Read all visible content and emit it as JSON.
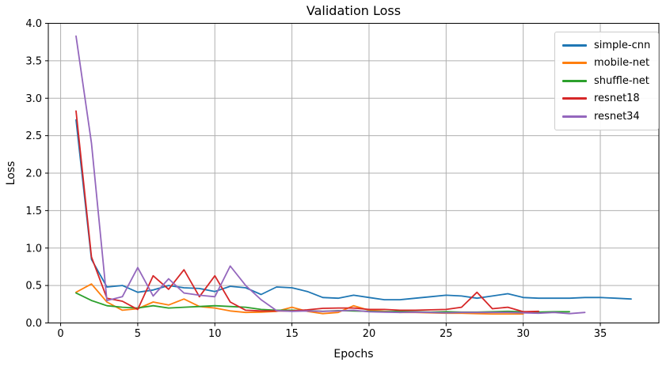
{
  "figure": {
    "background": "#ffffff",
    "grid_color": "#b0b0b0",
    "spine_color": "#000000",
    "tick_label_color": "#000000"
  },
  "chart_data": {
    "type": "line",
    "title": "Validation Loss",
    "xlabel": "Epochs",
    "ylabel": "Loss",
    "xlim": [
      -0.8,
      38.8
    ],
    "ylim": [
      0.0,
      4.0
    ],
    "xticks": [
      0,
      5,
      10,
      15,
      20,
      25,
      30,
      35
    ],
    "yticks": [
      0.0,
      0.5,
      1.0,
      1.5,
      2.0,
      2.5,
      3.0,
      3.5,
      4.0
    ],
    "grid": true,
    "legend_position": "upper-right",
    "x_start": 1,
    "series": [
      {
        "name": "simple-cnn",
        "color": "#1f77b4",
        "values": [
          2.71,
          0.85,
          0.48,
          0.5,
          0.41,
          0.44,
          0.5,
          0.47,
          0.46,
          0.42,
          0.49,
          0.47,
          0.38,
          0.48,
          0.47,
          0.42,
          0.34,
          0.33,
          0.37,
          0.34,
          0.31,
          0.31,
          0.33,
          0.35,
          0.37,
          0.36,
          0.33,
          0.36,
          0.39,
          0.34,
          0.33,
          0.33,
          0.33,
          0.34,
          0.34,
          0.33,
          0.32
        ]
      },
      {
        "name": "mobile-net",
        "color": "#ff7f0e",
        "values": [
          0.41,
          0.52,
          0.28,
          0.17,
          0.19,
          0.28,
          0.24,
          0.32,
          0.22,
          0.2,
          0.16,
          0.14,
          0.145,
          0.155,
          0.21,
          0.155,
          0.125,
          0.14,
          0.23,
          0.17,
          0.155,
          0.14,
          0.14,
          0.135,
          0.13,
          0.13,
          0.125,
          0.12,
          0.12,
          0.12
        ]
      },
      {
        "name": "shuffle-net",
        "color": "#2ca02c",
        "values": [
          0.4,
          0.3,
          0.23,
          0.21,
          0.2,
          0.23,
          0.2,
          0.21,
          0.22,
          0.23,
          0.22,
          0.21,
          0.18,
          0.17,
          0.17,
          0.165,
          0.155,
          0.165,
          0.16,
          0.155,
          0.15,
          0.155,
          0.15,
          0.145,
          0.15,
          0.145,
          0.145,
          0.15,
          0.155,
          0.15,
          0.145,
          0.15,
          0.15
        ]
      },
      {
        "name": "resnet18",
        "color": "#d62728",
        "values": [
          2.83,
          0.88,
          0.33,
          0.29,
          0.18,
          0.63,
          0.45,
          0.71,
          0.35,
          0.63,
          0.28,
          0.17,
          0.16,
          0.16,
          0.16,
          0.175,
          0.195,
          0.2,
          0.2,
          0.18,
          0.18,
          0.17,
          0.17,
          0.175,
          0.18,
          0.21,
          0.41,
          0.19,
          0.21,
          0.15,
          0.155
        ]
      },
      {
        "name": "resnet34",
        "color": "#9467bd",
        "values": [
          3.83,
          2.4,
          0.3,
          0.35,
          0.74,
          0.36,
          0.59,
          0.4,
          0.37,
          0.35,
          0.76,
          0.5,
          0.31,
          0.165,
          0.155,
          0.16,
          0.155,
          0.16,
          0.17,
          0.15,
          0.145,
          0.14,
          0.145,
          0.14,
          0.135,
          0.14,
          0.14,
          0.14,
          0.14,
          0.135,
          0.13,
          0.14,
          0.125,
          0.14
        ]
      }
    ]
  }
}
